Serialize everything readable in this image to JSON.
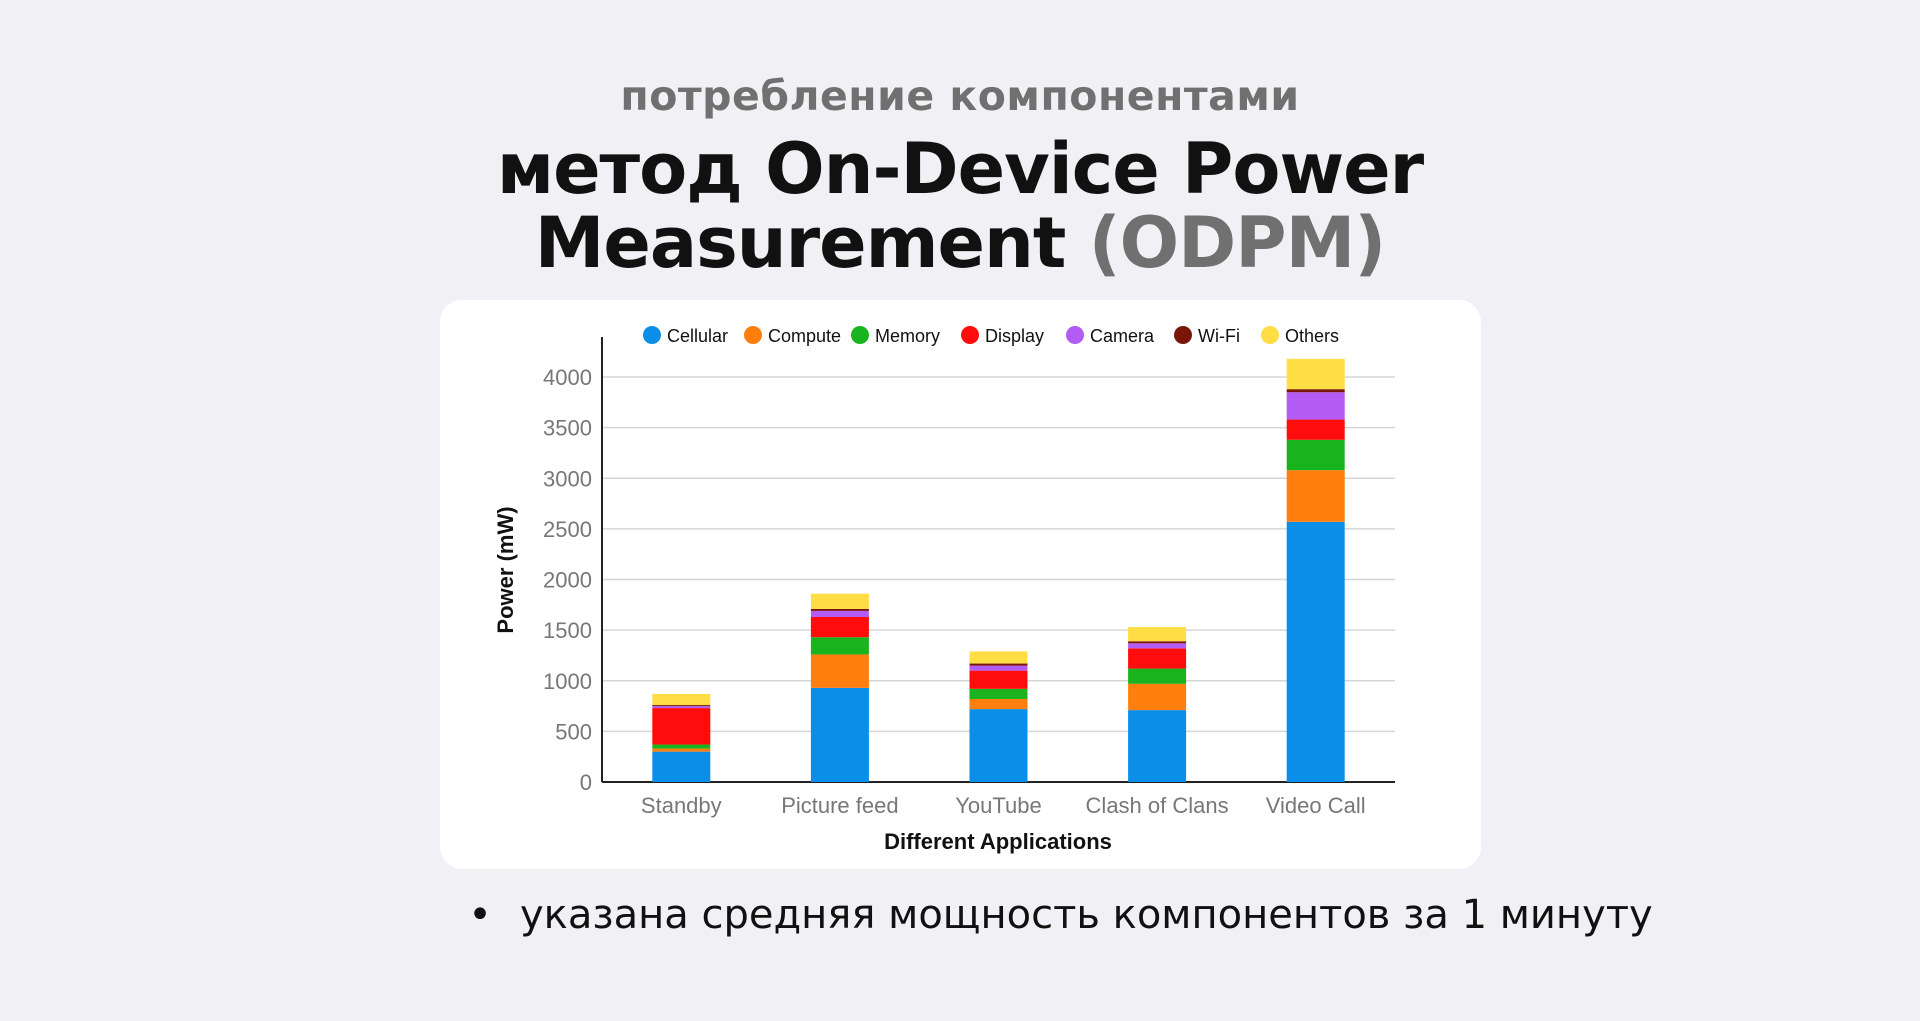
{
  "header": {
    "kicker": "потребление компонентами",
    "title_line1": "метод On-Device Power",
    "title_line2_main": "Measurement",
    "title_line2_muted": "(ODPM)"
  },
  "note": {
    "bullet_glyph": "•",
    "text": "указана средняя мощность компонентов за 1 минуту"
  },
  "chart_data": {
    "type": "bar",
    "stacked": true,
    "title": "",
    "xlabel": "Different Applications",
    "ylabel": "Power (mW)",
    "ylim": [
      0,
      4200
    ],
    "yticks": [
      0,
      500,
      1000,
      1500,
      2000,
      2500,
      3000,
      3500,
      4000
    ],
    "grid": true,
    "legend_position": "top",
    "categories": [
      "Standby",
      "Picture feed",
      "YouTube",
      "Clash of Clans",
      "Video Call"
    ],
    "series": [
      {
        "name": "Cellular",
        "color": "#0a8ee8",
        "values": [
          300,
          930,
          720,
          710,
          2570
        ]
      },
      {
        "name": "Compute",
        "color": "#ff7f0e",
        "values": [
          30,
          330,
          100,
          260,
          510
        ]
      },
      {
        "name": "Memory",
        "color": "#19b31d",
        "values": [
          40,
          170,
          100,
          150,
          300
        ]
      },
      {
        "name": "Display",
        "color": "#ff0d0d",
        "values": [
          360,
          200,
          180,
          200,
          200
        ]
      },
      {
        "name": "Camera",
        "color": "#b25bf5",
        "values": [
          20,
          60,
          50,
          50,
          270
        ]
      },
      {
        "name": "Wi-Fi",
        "color": "#7a1608",
        "values": [
          10,
          20,
          20,
          20,
          30
        ]
      },
      {
        "name": "Others",
        "color": "#ffdd44",
        "values": [
          110,
          150,
          120,
          140,
          300
        ]
      }
    ]
  }
}
